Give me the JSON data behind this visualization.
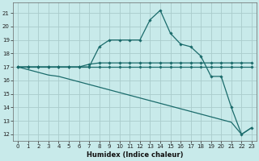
{
  "xlabel": "Humidex (Indice chaleur)",
  "background_color": "#c8eaea",
  "grid_color": "#aacccc",
  "line_color": "#1a6b6b",
  "xlim": [
    -0.5,
    23.5
  ],
  "ylim": [
    11.5,
    21.8
  ],
  "xticks": [
    0,
    1,
    2,
    3,
    4,
    5,
    6,
    7,
    8,
    9,
    10,
    11,
    12,
    13,
    14,
    15,
    16,
    17,
    18,
    19,
    20,
    21,
    22,
    23
  ],
  "yticks": [
    12,
    13,
    14,
    15,
    16,
    17,
    18,
    19,
    20,
    21
  ],
  "lines": [
    {
      "x": [
        0,
        1,
        2,
        3,
        4,
        5,
        6,
        7,
        8,
        9,
        10,
        11,
        12,
        13,
        14,
        15,
        16,
        17,
        18,
        19,
        20,
        21,
        22,
        23
      ],
      "y": [
        17,
        17,
        17,
        17,
        17,
        17,
        17,
        17,
        18.5,
        19,
        19,
        19,
        19,
        20.5,
        21.2,
        19.5,
        18.7,
        18.5,
        17.8,
        16.3,
        16.3,
        14,
        12,
        12.5
      ],
      "marker": true
    },
    {
      "x": [
        0,
        1,
        2,
        3,
        4,
        5,
        6,
        7,
        8,
        9,
        10,
        11,
        12,
        13,
        14,
        15,
        16,
        17,
        18,
        19,
        20,
        21,
        22,
        23
      ],
      "y": [
        17,
        17,
        17,
        17,
        17,
        17,
        17,
        17.2,
        17.3,
        17.3,
        17.3,
        17.3,
        17.3,
        17.3,
        17.3,
        17.3,
        17.3,
        17.3,
        17.3,
        17.3,
        17.3,
        17.3,
        17.3,
        17.3
      ],
      "marker": true
    },
    {
      "x": [
        0,
        1,
        2,
        3,
        4,
        5,
        6,
        7,
        8,
        9,
        10,
        11,
        12,
        13,
        14,
        15,
        16,
        17,
        18,
        19,
        20,
        21,
        22,
        23
      ],
      "y": [
        17,
        17,
        17,
        17,
        17,
        17,
        17,
        17,
        17,
        17,
        17,
        17,
        17,
        17,
        17,
        17,
        17,
        17,
        17,
        17,
        17,
        17,
        17,
        17
      ],
      "marker": true
    },
    {
      "x": [
        0,
        1,
        2,
        3,
        4,
        5,
        6,
        7,
        8,
        9,
        10,
        11,
        12,
        13,
        14,
        15,
        16,
        17,
        18,
        19,
        20,
        21,
        22,
        23
      ],
      "y": [
        17,
        16.8,
        16.6,
        16.4,
        16.3,
        16.1,
        15.9,
        15.7,
        15.5,
        15.3,
        15.1,
        14.9,
        14.7,
        14.5,
        14.3,
        14.1,
        13.9,
        13.7,
        13.5,
        13.3,
        13.1,
        12.9,
        12,
        12.5
      ],
      "marker": false
    }
  ],
  "figsize": [
    3.2,
    2.0
  ],
  "dpi": 100
}
